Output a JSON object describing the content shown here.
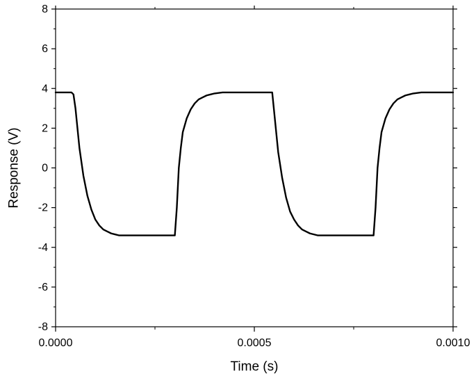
{
  "chart_data": {
    "type": "line",
    "title": "",
    "xlabel": "Time (s)",
    "ylabel": "Response (V)",
    "xlim": [
      0,
      0.001
    ],
    "ylim": [
      -8,
      8
    ],
    "x_ticks": [
      0,
      0.0005,
      0.001
    ],
    "x_tick_labels": [
      "0.0000",
      "0.0005",
      "0.0010"
    ],
    "y_ticks": [
      -8,
      -6,
      -4,
      -2,
      0,
      2,
      4,
      6,
      8
    ],
    "y_tick_labels": [
      "-8",
      "-6",
      "-4",
      "-2",
      "0",
      "2",
      "4",
      "6",
      "8"
    ],
    "grid": false,
    "legend": "none",
    "line_color": "#000000",
    "series": [
      {
        "x": [
          0,
          2e-05,
          4e-05,
          4.5e-05,
          5e-05,
          5.5e-05,
          6e-05,
          7e-05,
          8e-05,
          9e-05,
          0.0001,
          0.00011,
          0.00012,
          0.00013,
          0.00014,
          0.00015,
          0.00016,
          0.00018,
          0.00022,
          0.00026,
          0.0003,
          0.000305,
          0.00031,
          0.000315,
          0.00032,
          0.00033,
          0.00034,
          0.00035,
          0.00036,
          0.00037,
          0.00038,
          0.00039,
          0.0004,
          0.00042,
          0.00046,
          0.0005,
          0.000545,
          0.00055,
          0.000555,
          0.00056,
          0.00057,
          0.00058,
          0.00059,
          0.0006,
          0.00061,
          0.00062,
          0.00063,
          0.00064,
          0.00066,
          0.0007,
          0.00075,
          0.0008,
          0.000805,
          0.00081,
          0.000815,
          0.00082,
          0.00083,
          0.00084,
          0.00085,
          0.00086,
          0.00087,
          0.00088,
          0.00089,
          0.0009,
          0.00092,
          0.00095,
          0.001
        ],
        "y": [
          3.8,
          3.8,
          3.8,
          3.7,
          3.0,
          2.0,
          1.0,
          -0.4,
          -1.4,
          -2.1,
          -2.6,
          -2.9,
          -3.1,
          -3.2,
          -3.3,
          -3.35,
          -3.4,
          -3.4,
          -3.4,
          -3.4,
          -3.4,
          -2.0,
          0.0,
          1.0,
          1.8,
          2.5,
          2.95,
          3.25,
          3.45,
          3.55,
          3.65,
          3.7,
          3.75,
          3.8,
          3.8,
          3.8,
          3.8,
          2.8,
          1.8,
          0.8,
          -0.5,
          -1.5,
          -2.2,
          -2.6,
          -2.9,
          -3.1,
          -3.2,
          -3.3,
          -3.4,
          -3.4,
          -3.4,
          -3.4,
          -2.0,
          0.0,
          1.0,
          1.8,
          2.5,
          2.95,
          3.25,
          3.45,
          3.55,
          3.65,
          3.7,
          3.75,
          3.8,
          3.8,
          3.8
        ]
      }
    ]
  }
}
